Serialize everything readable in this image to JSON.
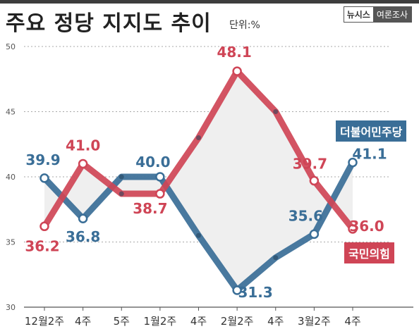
{
  "header": {
    "title": "주요 정당 지지도 추이",
    "unit": "단위:%",
    "source_brand": "뉴시스",
    "source_label": "여론조사"
  },
  "chart_data": {
    "type": "line",
    "title": "주요 정당 지지도 추이",
    "xlabel": "",
    "ylabel": "",
    "ylim": [
      30,
      50
    ],
    "yticks": [
      "30",
      "35",
      "40",
      "45",
      "50"
    ],
    "grid": true,
    "categories": [
      "12월2주",
      "4주",
      "5주",
      "1월2주",
      "4주",
      "2월2주",
      "4주",
      "3월2주",
      "4주"
    ],
    "x_tick_labels": [
      "12월2주",
      "4주",
      "5주",
      "1월2주",
      "4주",
      "2월2주",
      "4주",
      "3월2주",
      "4주"
    ],
    "series": [
      {
        "name": "더불어민주당",
        "color": "#3a6e97",
        "values": [
          39.9,
          36.8,
          40.0,
          40.0,
          35.5,
          31.3,
          33.8,
          35.6,
          41.1
        ],
        "labels": [
          "39.9",
          "36.8",
          "",
          "40.0",
          "",
          "31.3",
          "",
          "35.6",
          "41.1"
        ]
      },
      {
        "name": "국민의힘",
        "color": "#cf4556",
        "values": [
          36.2,
          41.0,
          38.7,
          38.7,
          43.0,
          48.1,
          45.0,
          39.7,
          36.0
        ],
        "labels": [
          "36.2",
          "41.0",
          "",
          "38.7",
          "",
          "48.1",
          "",
          "39.7",
          "36.0"
        ]
      }
    ],
    "legend": "inline"
  }
}
